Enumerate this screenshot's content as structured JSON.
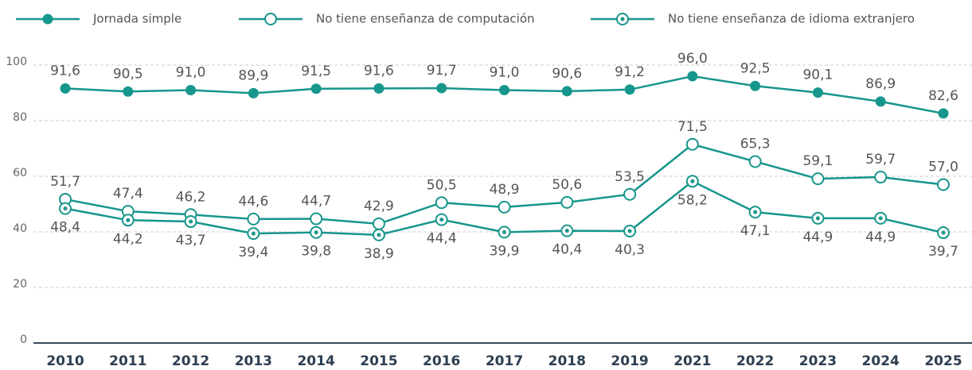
{
  "chart_data": {
    "type": "line",
    "categories": [
      "2010",
      "2011",
      "2012",
      "2013",
      "2014",
      "2015",
      "2016",
      "2017",
      "2018",
      "2019",
      "2021",
      "2022",
      "2023",
      "2024",
      "2025"
    ],
    "series": [
      {
        "name": "Jornada simple",
        "color": "#17968c",
        "marker": "filled",
        "label_position": "above",
        "values": [
          91.6,
          90.5,
          91.0,
          89.9,
          91.5,
          91.6,
          91.7,
          91.0,
          90.6,
          91.2,
          96.0,
          92.5,
          90.1,
          86.9,
          82.6
        ],
        "value_labels": [
          "91,6",
          "90,5",
          "91,0",
          "89,9",
          "91,5",
          "91,6",
          "91,7",
          "91,0",
          "90,6",
          "91,2",
          "96,0",
          "92,5",
          "90,1",
          "86,9",
          "82,6"
        ]
      },
      {
        "name": "No tiene enseñanza de computación",
        "color": "#17968c",
        "marker": "open",
        "label_position": "above",
        "values": [
          51.7,
          47.4,
          46.2,
          44.6,
          44.7,
          42.9,
          50.5,
          48.9,
          50.6,
          53.5,
          71.5,
          65.3,
          59.1,
          59.7,
          57.0
        ],
        "value_labels": [
          "51,7",
          "47,4",
          "46,2",
          "44,6",
          "44,7",
          "42,9",
          "50,5",
          "48,9",
          "50,6",
          "53,5",
          "71,5",
          "65,3",
          "59,1",
          "59,7",
          "57,0"
        ]
      },
      {
        "name": "No tiene enseñanza de idioma extranjero",
        "color": "#17968c",
        "marker": "dot",
        "label_position": "below",
        "values": [
          48.4,
          44.2,
          43.7,
          39.4,
          39.8,
          38.9,
          44.4,
          39.9,
          40.4,
          40.3,
          58.2,
          47.1,
          44.9,
          44.9,
          39.7
        ],
        "value_labels": [
          "48,4",
          "44,2",
          "43,7",
          "39,4",
          "39,8",
          "38,9",
          "44,4",
          "39,9",
          "40,4",
          "40,3",
          "58,2",
          "47,1",
          "44,9",
          "44,9",
          "39,7"
        ]
      }
    ],
    "ylim": [
      0,
      100
    ],
    "yticks": [
      0,
      20,
      40,
      60,
      80,
      100
    ],
    "grid": true,
    "legend": "top"
  }
}
